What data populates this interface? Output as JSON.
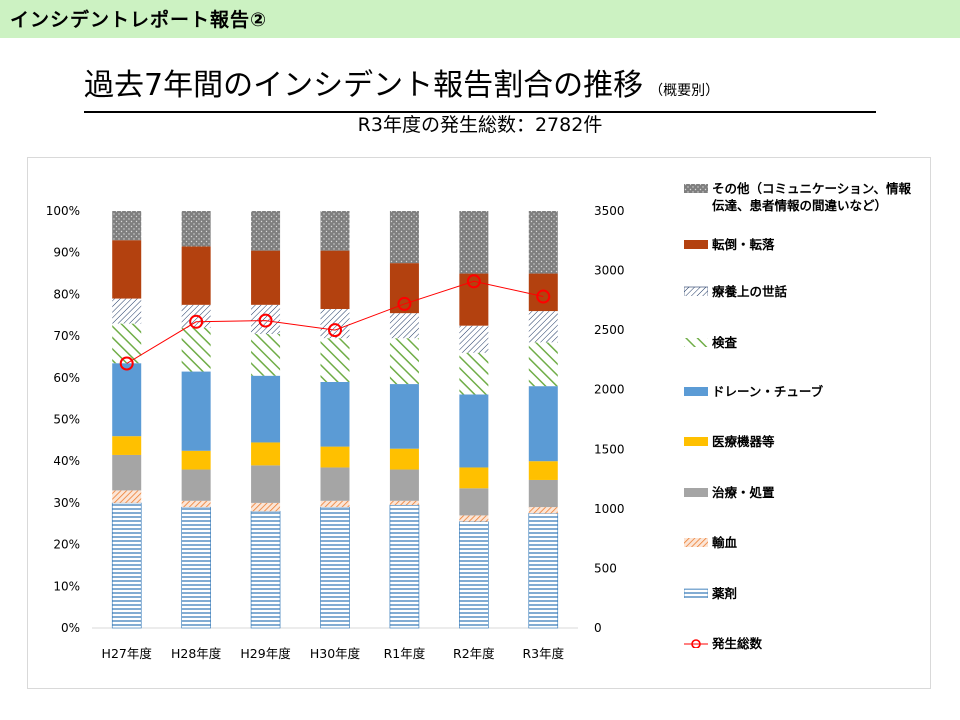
{
  "header": {
    "title": "インシデントレポート報告②"
  },
  "main_title": {
    "text": "過去7年間のインシデント報告割合の推移",
    "suffix": "（概要別）"
  },
  "subtitle": "R3年度の発生総数：2782件",
  "colors": {
    "header_bg": "#ccf2c2",
    "other": "#7f7f7f",
    "fall": "#b3410f",
    "care": "#ffffff",
    "test": "#70ad47",
    "drain": "#5b9bd5",
    "device": "#ffc000",
    "treatment": "#a5a5a5",
    "transfusion": "#f4b183",
    "drug": "#2e75b6",
    "line": "#ff0000"
  },
  "chart_data": {
    "type": "bar",
    "stacked": true,
    "categories": [
      "H27年度",
      "H28年度",
      "H29年度",
      "H30年度",
      "R1年度",
      "R2年度",
      "R3年度"
    ],
    "series": [
      {
        "key": "drug",
        "name": "薬剤",
        "values": [
          30,
          29,
          28,
          29,
          29.5,
          25.5,
          27.5
        ]
      },
      {
        "key": "transfusion",
        "name": "輸血",
        "values": [
          3,
          1.5,
          2,
          1.5,
          1,
          1.5,
          1.5
        ]
      },
      {
        "key": "treatment",
        "name": "治療・処置",
        "values": [
          8.5,
          7.5,
          9,
          8,
          7.5,
          6.5,
          6.5
        ]
      },
      {
        "key": "device",
        "name": "医療機器等",
        "values": [
          4.5,
          4.5,
          5.5,
          5,
          5,
          5,
          4.5
        ]
      },
      {
        "key": "drain",
        "name": "ドレーン・チューブ",
        "values": [
          17.5,
          19,
          16,
          15.5,
          15.5,
          17.5,
          18
        ]
      },
      {
        "key": "test",
        "name": "検査",
        "values": [
          9.5,
          10.5,
          10,
          10.5,
          11,
          10,
          10.5
        ]
      },
      {
        "key": "care",
        "name": "療養上の世話",
        "values": [
          6,
          5.5,
          7,
          7,
          6,
          6.5,
          7.5
        ]
      },
      {
        "key": "fall",
        "name": "転倒・転落",
        "values": [
          14,
          14,
          13,
          14,
          12,
          12.5,
          9
        ]
      },
      {
        "key": "other",
        "name": "その他（コミュニケーション、情報伝達、患者情報の間違いなど）",
        "values": [
          7,
          8.5,
          9.5,
          9.5,
          12.5,
          15,
          15
        ]
      }
    ],
    "line_series": {
      "name": "発生総数",
      "axis": "right",
      "values": [
        2220,
        2570,
        2580,
        2500,
        2720,
        2910,
        2782
      ]
    },
    "y_left": {
      "min": 0,
      "max": 100,
      "step": 10,
      "unit": "%",
      "ticks": [
        "0%",
        "10%",
        "20%",
        "30%",
        "40%",
        "50%",
        "60%",
        "70%",
        "80%",
        "90%",
        "100%"
      ]
    },
    "y_right": {
      "min": 0,
      "max": 3500,
      "step": 500,
      "ticks": [
        "0",
        "500",
        "1000",
        "1500",
        "2000",
        "2500",
        "3000",
        "3500"
      ]
    },
    "legend_position": "right"
  },
  "legend": [
    {
      "key": "other",
      "label": "その他（コミュニケーション、情報伝達、患者情報の間違いなど）"
    },
    {
      "key": "fall",
      "label": "転倒・転落"
    },
    {
      "key": "care",
      "label": "療養上の世話"
    },
    {
      "key": "test",
      "label": "検査"
    },
    {
      "key": "drain",
      "label": "ドレーン・チューブ"
    },
    {
      "key": "device",
      "label": "医療機器等"
    },
    {
      "key": "treatment",
      "label": "治療・処置"
    },
    {
      "key": "transfusion",
      "label": "輸血"
    },
    {
      "key": "drug",
      "label": "薬剤"
    },
    {
      "key": "line",
      "label": "発生総数"
    }
  ]
}
